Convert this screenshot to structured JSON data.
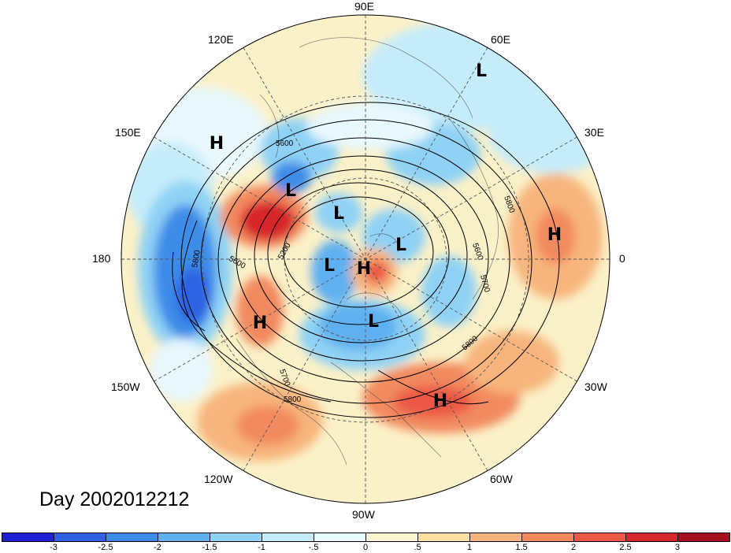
{
  "title": "Day 2002012212",
  "longitude_labels": [
    {
      "id": "lon-90e",
      "text": "90E"
    },
    {
      "id": "lon-60e",
      "text": "60E"
    },
    {
      "id": "lon-30e",
      "text": "30E"
    },
    {
      "id": "lon-0",
      "text": "0"
    },
    {
      "id": "lon-30w",
      "text": "30W"
    },
    {
      "id": "lon-60w",
      "text": "60W"
    },
    {
      "id": "lon-90w",
      "text": "90W"
    },
    {
      "id": "lon-120w",
      "text": "120W"
    },
    {
      "id": "lon-150w",
      "text": "150W"
    },
    {
      "id": "lon-180",
      "text": "180"
    },
    {
      "id": "lon-150e",
      "text": "150E"
    },
    {
      "id": "lon-120e",
      "text": "120E"
    }
  ],
  "pressure_centers": [
    {
      "type": "L",
      "region": "siberia-north"
    },
    {
      "type": "H",
      "region": "north-pacific-west"
    },
    {
      "type": "L",
      "region": "kamchatka"
    },
    {
      "type": "L",
      "region": "arctic-east-siberian"
    },
    {
      "type": "L",
      "region": "arctic-kara"
    },
    {
      "type": "H",
      "region": "north-africa"
    },
    {
      "type": "L",
      "region": "alaska-north"
    },
    {
      "type": "H",
      "region": "arctic-canada"
    },
    {
      "type": "H",
      "region": "gulf-of-alaska"
    },
    {
      "type": "L",
      "region": "hudson-bay"
    },
    {
      "type": "H",
      "region": "subtropical-atlantic"
    }
  ],
  "contour_labels": [
    "5600",
    "5800",
    "5200",
    "5600",
    "5800",
    "5700",
    "5800",
    "5600",
    "5700",
    "5800"
  ],
  "colorbar": {
    "colors": [
      "#1f1fd6",
      "#2f63e3",
      "#3c8ce8",
      "#5fb0f0",
      "#8fd2f5",
      "#c5ecfb",
      "#e8f8fd",
      "#fbf5d2",
      "#fbe0a0",
      "#f7b57d",
      "#f28a5e",
      "#ec5944",
      "#d6282c",
      "#a5101f"
    ],
    "tick_labels": [
      "-3",
      "-2.5",
      "-2",
      "-1.5",
      "-1",
      "-.5",
      "0",
      ".5",
      "1",
      "1.5",
      "2",
      "2.5",
      "3"
    ]
  }
}
